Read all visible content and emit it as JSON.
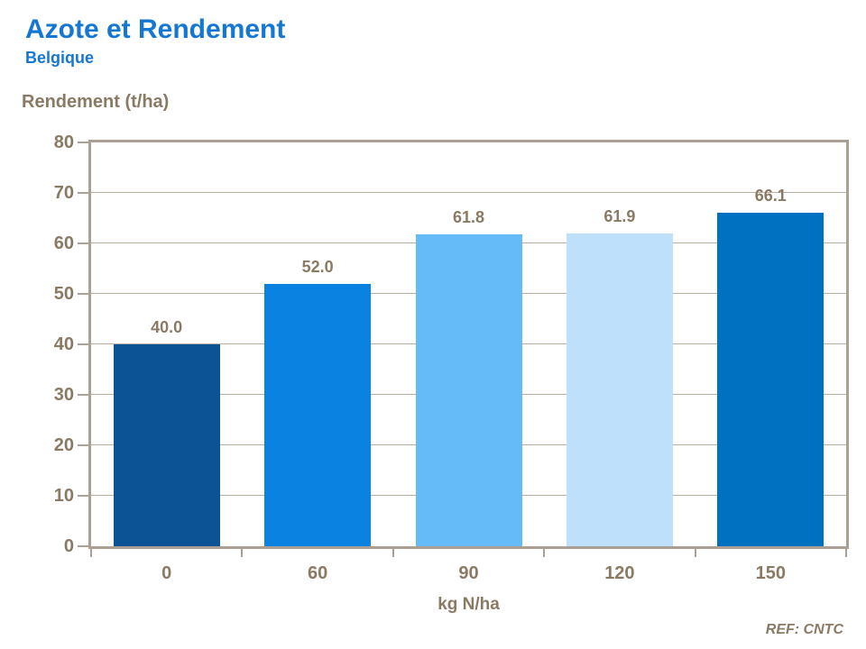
{
  "header": {
    "title": "Azote et Rendement",
    "subtitle": "Belgique"
  },
  "footer": {
    "ref": "REF: CNTC"
  },
  "colors": {
    "title_blue": "#1577D1",
    "axis_text": "#8A7A63",
    "frame": "#ABA093",
    "gridline": "#B9AD9D"
  },
  "chart_data": {
    "type": "bar",
    "categories": [
      "0",
      "60",
      "90",
      "120",
      "150"
    ],
    "values": [
      40.0,
      52.0,
      61.8,
      61.9,
      66.1
    ],
    "value_labels": [
      "40.0",
      "52.0",
      "61.8",
      "61.9",
      "66.1"
    ],
    "bar_colors": [
      "#0B5394",
      "#0982E2",
      "#64BBF7",
      "#BFE0FA",
      "#0070C0"
    ],
    "title": "Azote et Rendement",
    "subtitle": "Belgique",
    "xlabel": "kg N/ha",
    "ylabel": "Rendement (t/ha)",
    "ylim": [
      0,
      80
    ],
    "ytick_step": 10,
    "grid": true,
    "legend": "none"
  }
}
